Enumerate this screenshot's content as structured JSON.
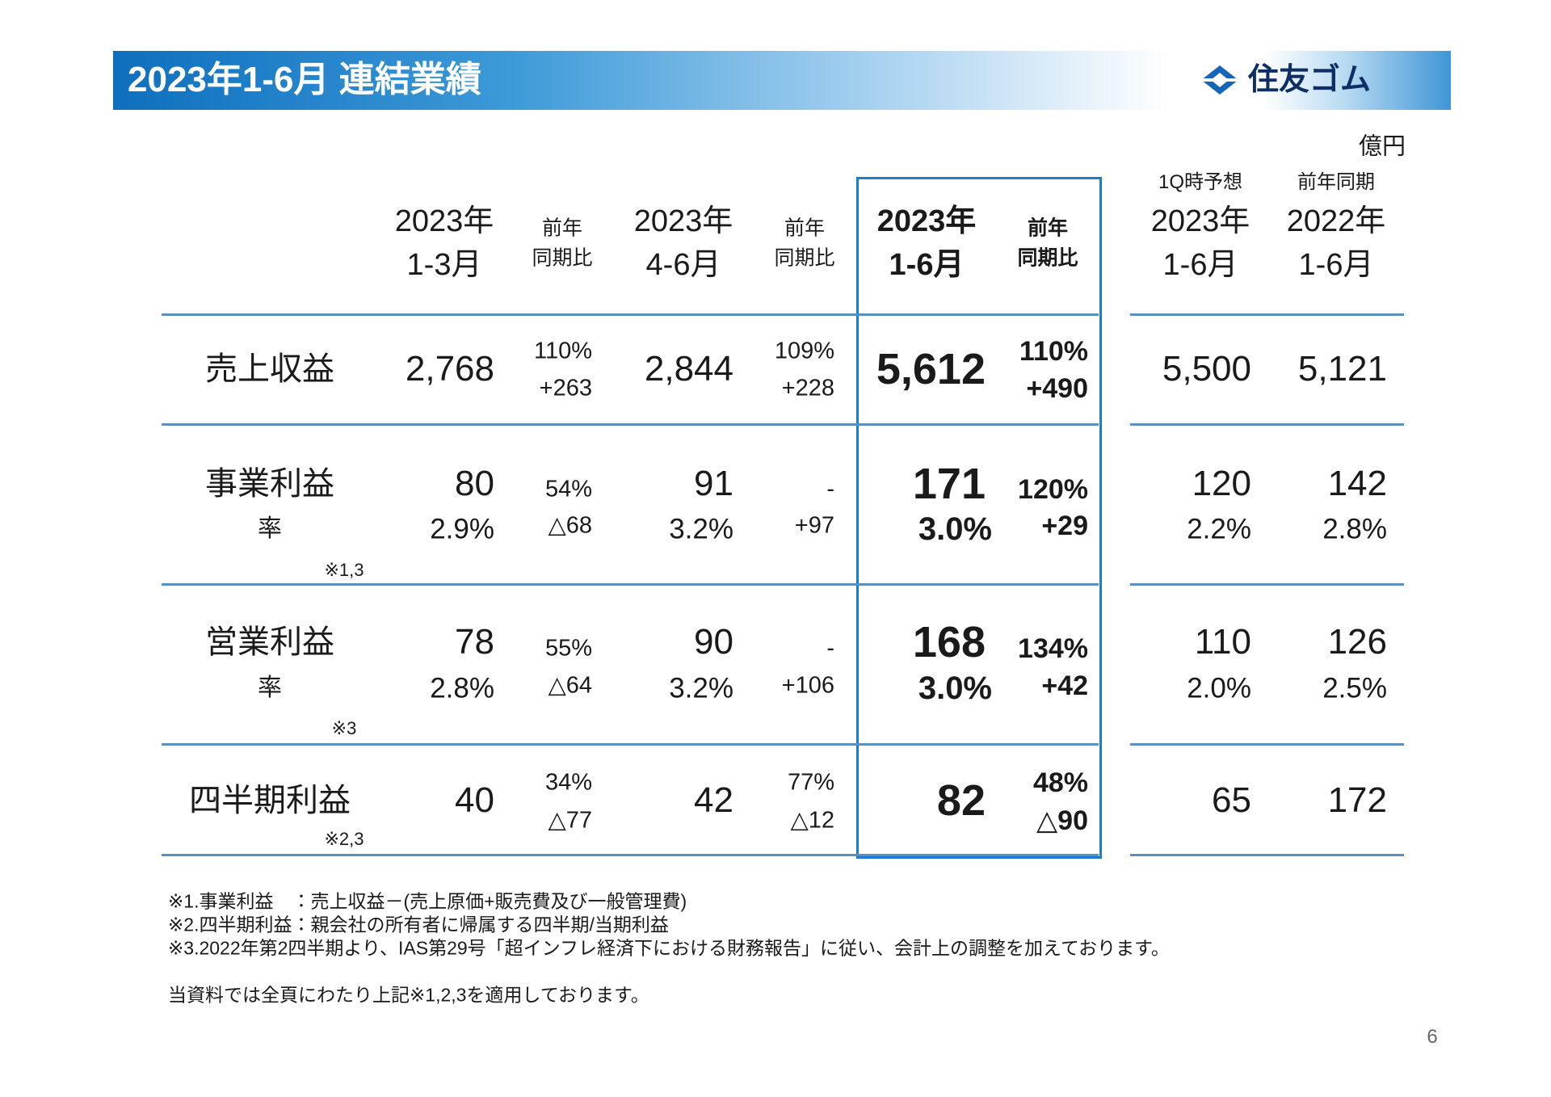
{
  "header": {
    "title": "2023年1-6月 連結業績",
    "logo": "住友ゴム"
  },
  "table": {
    "unit": "億円",
    "columns": [
      {
        "lines": [
          "2023年",
          "1-3月"
        ]
      },
      {
        "lines": [
          "前年",
          "同期比"
        ]
      },
      {
        "lines": [
          "2023年",
          "4-6月"
        ]
      },
      {
        "lines": [
          "前年",
          "同期比"
        ]
      },
      {
        "lines": [
          "2023年",
          "1-6月"
        ]
      },
      {
        "lines": [
          "前年",
          "同期比"
        ]
      },
      {
        "top": "1Q時予想",
        "lines": [
          "2023年",
          "1-6月"
        ]
      },
      {
        "top": "前年同期",
        "lines": [
          "2022年",
          "1-6月"
        ]
      }
    ],
    "rows": [
      {
        "label": "売上収益",
        "cells": [
          [
            "2,768"
          ],
          [
            "110%",
            "+263"
          ],
          [
            "2,844"
          ],
          [
            "109%",
            "+228"
          ],
          [
            "5,612"
          ],
          [
            "110%",
            "+490"
          ],
          [
            "5,500"
          ],
          [
            "5,121"
          ]
        ]
      },
      {
        "label": "事業利益",
        "sub": "率",
        "note": "※1,3",
        "cells": [
          [
            "80",
            "2.9%"
          ],
          [
            "54%",
            "△68"
          ],
          [
            "91",
            "3.2%"
          ],
          [
            "-",
            "+97"
          ],
          [
            "171",
            "3.0%"
          ],
          [
            "120%",
            "+29"
          ],
          [
            "120",
            "2.2%"
          ],
          [
            "142",
            "2.8%"
          ]
        ]
      },
      {
        "label": "営業利益",
        "sub": "率",
        "note": "※3",
        "cells": [
          [
            "78",
            "2.8%"
          ],
          [
            "55%",
            "△64"
          ],
          [
            "90",
            "3.2%"
          ],
          [
            "-",
            "+106"
          ],
          [
            "168",
            "3.0%"
          ],
          [
            "134%",
            "+42"
          ],
          [
            "110",
            "2.0%"
          ],
          [
            "126",
            "2.5%"
          ]
        ]
      },
      {
        "label": "四半期利益",
        "note": "※2,3",
        "cells": [
          [
            "40"
          ],
          [
            "34%",
            "△77"
          ],
          [
            "42"
          ],
          [
            "77%",
            "△12"
          ],
          [
            "82"
          ],
          [
            "48%",
            "△90"
          ],
          [
            "65"
          ],
          [
            "172"
          ]
        ]
      }
    ]
  },
  "footnotes": [
    "※1.事業利益　：売上収益－(売上原価+販売費及び一般管理費)",
    "※2.四半期利益：親会社の所有者に帰属する四半期/当期利益",
    "※3.2022年第2四半期より、IAS第29号「超インフレ経済下における財務報告」に従い、会計上の調整を加えております。",
    "当資料では全頁にわたり上記※1,2,3を適用しております。"
  ],
  "page_number": "6"
}
